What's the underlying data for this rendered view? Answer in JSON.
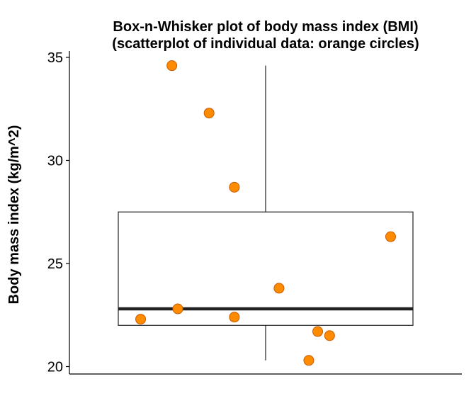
{
  "chart_data": {
    "type": "box",
    "title": "Box-n-Whisker plot of body mass index (BMI)",
    "subtitle": "(scatterplot of individual data: orange circles)",
    "xlabel": "",
    "ylabel": "Body mass index (kg/m^2)",
    "ylim": [
      19.7,
      35.3
    ],
    "yticks": [
      20,
      25,
      30,
      35
    ],
    "box": {
      "whisker_low": 20.3,
      "q1": 22.0,
      "median": 22.8,
      "q3": 27.5,
      "whisker_high": 34.6
    },
    "points": {
      "jitter_x": [
        -0.84,
        -0.63,
        -0.38,
        -0.21,
        0.09,
        0.29,
        0.35,
        0.43,
        0.84,
        -0.59
      ],
      "y": [
        22.3,
        34.6,
        32.3,
        28.7,
        23.8,
        20.3,
        21.7,
        21.5,
        26.3,
        22.8
      ]
    },
    "extra_point": {
      "jitter_x": -0.21,
      "y": 22.4
    },
    "colors": {
      "point_fill": "#FF8C00",
      "point_stroke": "#C85A00",
      "box_stroke": "#222222",
      "median": "#222222"
    },
    "grid": false,
    "legend": "none"
  }
}
